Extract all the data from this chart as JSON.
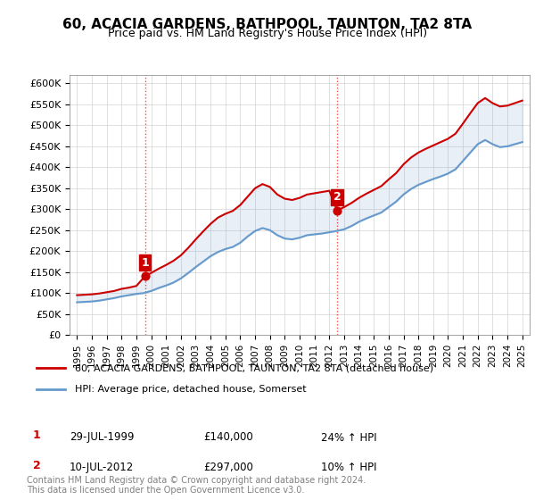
{
  "title": "60, ACACIA GARDENS, BATHPOOL, TAUNTON, TA2 8TA",
  "subtitle": "Price paid vs. HM Land Registry's House Price Index (HPI)",
  "ylabel_ticks": [
    "£0",
    "£50K",
    "£100K",
    "£150K",
    "£200K",
    "£250K",
    "£300K",
    "£350K",
    "£400K",
    "£450K",
    "£500K",
    "£550K",
    "£600K"
  ],
  "ylim": [
    0,
    620000
  ],
  "yticks": [
    0,
    50000,
    100000,
    150000,
    200000,
    250000,
    300000,
    350000,
    400000,
    450000,
    500000,
    550000,
    600000
  ],
  "legend_line1": "60, ACACIA GARDENS, BATHPOOL, TAUNTON, TA2 8TA (detached house)",
  "legend_line2": "HPI: Average price, detached house, Somerset",
  "annotation1_label": "1",
  "annotation1_date": "29-JUL-1999",
  "annotation1_price": "£140,000",
  "annotation1_hpi": "24% ↑ HPI",
  "annotation2_label": "2",
  "annotation2_date": "10-JUL-2012",
  "annotation2_price": "£297,000",
  "annotation2_hpi": "10% ↑ HPI",
  "footer": "Contains HM Land Registry data © Crown copyright and database right 2024.\nThis data is licensed under the Open Government Licence v3.0.",
  "red_color": "#cc0000",
  "blue_color": "#6699cc",
  "sale1_x": 1999.58,
  "sale1_y": 140000,
  "sale2_x": 2012.53,
  "sale2_y": 297000,
  "hpi_years": [
    1995,
    1995.5,
    1996,
    1996.5,
    1997,
    1997.5,
    1998,
    1998.5,
    1999,
    1999.5,
    2000,
    2000.5,
    2001,
    2001.5,
    2002,
    2002.5,
    2003,
    2003.5,
    2004,
    2004.5,
    2005,
    2005.5,
    2006,
    2006.5,
    2007,
    2007.5,
    2008,
    2008.5,
    2009,
    2009.5,
    2010,
    2010.5,
    2011,
    2011.5,
    2012,
    2012.5,
    2013,
    2013.5,
    2014,
    2014.5,
    2015,
    2015.5,
    2016,
    2016.5,
    2017,
    2017.5,
    2018,
    2018.5,
    2019,
    2019.5,
    2020,
    2020.5,
    2021,
    2021.5,
    2022,
    2022.5,
    2023,
    2023.5,
    2024,
    2024.5,
    2025
  ],
  "hpi_values": [
    78000,
    79000,
    80000,
    82000,
    85000,
    88000,
    92000,
    95000,
    98000,
    100000,
    105000,
    112000,
    118000,
    125000,
    135000,
    148000,
    162000,
    175000,
    188000,
    198000,
    205000,
    210000,
    220000,
    235000,
    248000,
    255000,
    250000,
    238000,
    230000,
    228000,
    232000,
    238000,
    240000,
    242000,
    245000,
    248000,
    252000,
    260000,
    270000,
    278000,
    285000,
    292000,
    305000,
    318000,
    335000,
    348000,
    358000,
    365000,
    372000,
    378000,
    385000,
    395000,
    415000,
    435000,
    455000,
    465000,
    455000,
    448000,
    450000,
    455000,
    460000
  ],
  "red_years": [
    1995,
    1995.5,
    1996,
    1996.5,
    1997,
    1997.5,
    1998,
    1998.5,
    1999,
    1999.58,
    2000,
    2000.5,
    2001,
    2001.5,
    2002,
    2002.5,
    2003,
    2003.5,
    2004,
    2004.5,
    2005,
    2005.5,
    2006,
    2006.5,
    2007,
    2007.5,
    2008,
    2008.5,
    2009,
    2009.5,
    2010,
    2010.5,
    2011,
    2011.5,
    2012,
    2012.53,
    2013,
    2013.5,
    2014,
    2014.5,
    2015,
    2015.5,
    2016,
    2016.5,
    2017,
    2017.5,
    2018,
    2018.5,
    2019,
    2019.5,
    2020,
    2020.5,
    2021,
    2021.5,
    2022,
    2022.5,
    2023,
    2023.5,
    2024,
    2024.5,
    2025
  ],
  "red_values": [
    95000,
    96000,
    97000,
    99000,
    102000,
    105000,
    110000,
    113000,
    117000,
    140000,
    148000,
    158000,
    167000,
    177000,
    190000,
    208000,
    228000,
    247000,
    265000,
    280000,
    289000,
    296000,
    310000,
    330000,
    350000,
    360000,
    353000,
    335000,
    325000,
    322000,
    327000,
    335000,
    338000,
    341000,
    344000,
    297000,
    305000,
    315000,
    327000,
    337000,
    346000,
    355000,
    371000,
    386000,
    407000,
    423000,
    435000,
    444000,
    452000,
    460000,
    468000,
    480000,
    504000,
    529000,
    553000,
    565000,
    553000,
    545000,
    547000,
    553000,
    559000
  ],
  "xlim_left": 1994.5,
  "xlim_right": 2025.5,
  "xtick_years": [
    1995,
    1996,
    1997,
    1998,
    1999,
    2000,
    2001,
    2002,
    2003,
    2004,
    2005,
    2006,
    2007,
    2008,
    2009,
    2010,
    2011,
    2012,
    2013,
    2014,
    2015,
    2016,
    2017,
    2018,
    2019,
    2020,
    2021,
    2022,
    2023,
    2024,
    2025
  ]
}
